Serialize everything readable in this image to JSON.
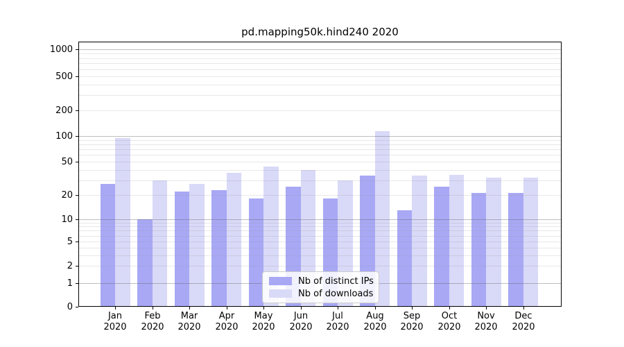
{
  "title": "pd.mapping50k.hind240 2020",
  "chart_data": {
    "type": "bar",
    "categories": [
      "Jan",
      "Feb",
      "Mar",
      "Apr",
      "May",
      "Jun",
      "Jul",
      "Aug",
      "Sep",
      "Oct",
      "Nov",
      "Dec"
    ],
    "category_year": "2020",
    "series": [
      {
        "name": "Nb of distinct IPs",
        "color": "#a8a8f5",
        "values": [
          27,
          10,
          22,
          23,
          18,
          25,
          18,
          34,
          13,
          25,
          21,
          21
        ]
      },
      {
        "name": "Nb of downloads",
        "color": "#d9d9f8",
        "values": [
          95,
          30,
          27,
          37,
          44,
          40,
          30,
          115,
          34,
          35,
          32,
          32
        ]
      }
    ],
    "y_axis": {
      "scale": "symlog",
      "tick_values": [
        0,
        1,
        2,
        5,
        10,
        20,
        50,
        100,
        200,
        500,
        1000
      ],
      "tick_labels": [
        "0",
        "1",
        "2",
        "5",
        "10",
        "20",
        "50",
        "100",
        "200",
        "500",
        "1000"
      ],
      "major_grid_values": [
        1,
        10,
        100,
        1000
      ],
      "ylim": [
        0,
        1200
      ]
    },
    "x_axis": {
      "label": ""
    },
    "grid": true,
    "legend": {
      "position": "lower center",
      "entries": [
        "Nb of distinct IPs",
        "Nb of downloads"
      ]
    }
  }
}
